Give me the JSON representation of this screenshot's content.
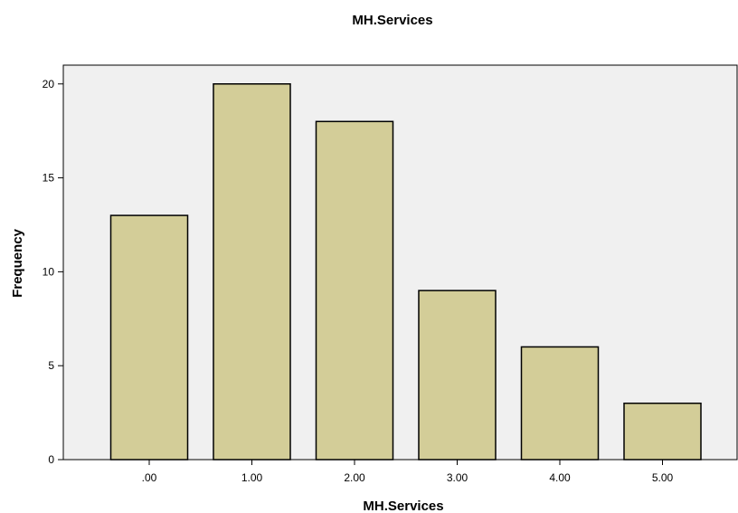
{
  "chart_data": {
    "type": "bar",
    "title": "MH.Services",
    "xlabel": "MH.Services",
    "ylabel": "Frequency",
    "categories": [
      ".00",
      "1.00",
      "2.00",
      "3.00",
      "4.00",
      "5.00"
    ],
    "values": [
      13,
      20,
      18,
      9,
      6,
      3
    ],
    "ylim": [
      0,
      21
    ],
    "yticks": [
      "0",
      "5",
      "10",
      "15",
      "20"
    ],
    "grid": false,
    "legend": "none",
    "colors": {
      "bar_fill": "#d3cd98",
      "bar_stroke": "#000000",
      "plot_background": "#f0f0f0"
    }
  }
}
